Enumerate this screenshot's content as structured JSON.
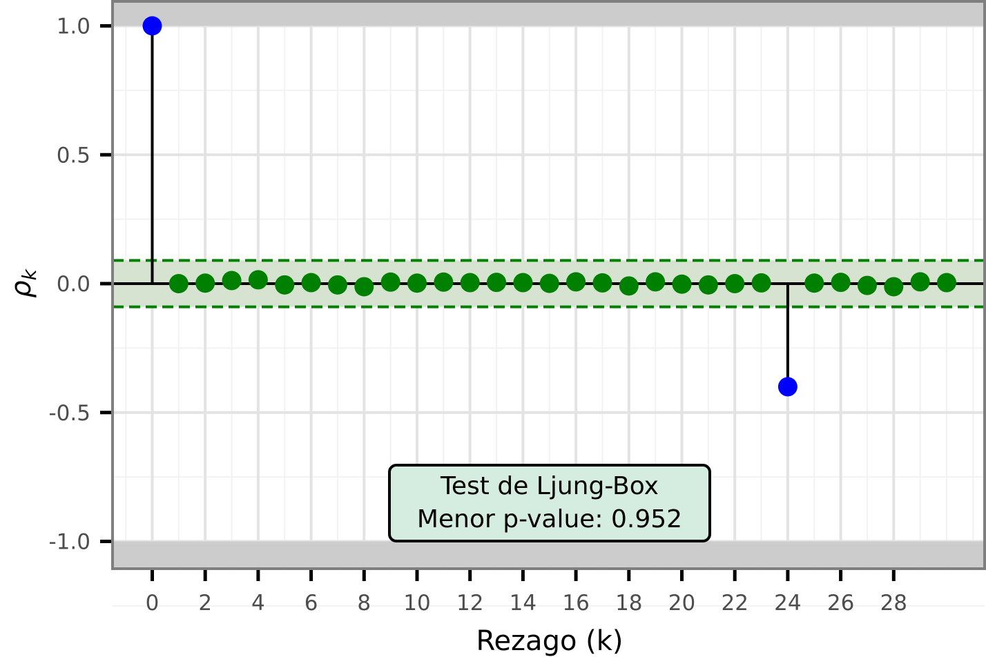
{
  "chart_data": {
    "type": "scatter",
    "subtype": "autocorrelation-stem",
    "xlabel": "Rezago (k)",
    "ylabel": "ρk",
    "ylabel_main": "ρ",
    "ylabel_sub": "k",
    "xlim": [
      -1.5,
      31.5
    ],
    "ylim": [
      -1.1,
      1.1
    ],
    "x_ticks": [
      0,
      2,
      4,
      6,
      8,
      10,
      12,
      14,
      16,
      18,
      20,
      22,
      24,
      26,
      28
    ],
    "x_tick_labels": [
      "0",
      "2",
      "4",
      "6",
      "8",
      "10",
      "12",
      "14",
      "16",
      "18",
      "20",
      "22",
      "24",
      "26",
      "28"
    ],
    "y_ticks": [
      -1.0,
      -0.5,
      0.0,
      0.5,
      1.0
    ],
    "y_tick_labels": [
      "-1.0",
      "-0.5",
      "0.0",
      "0.5",
      "1.0"
    ],
    "confidence_band": [
      -0.09,
      0.09
    ],
    "shaded_regions": [
      [
        1.0,
        1.1
      ],
      [
        -1.1,
        -1.0
      ]
    ],
    "grid": true,
    "lags": [
      0,
      1,
      2,
      3,
      4,
      5,
      6,
      7,
      8,
      9,
      10,
      11,
      12,
      13,
      14,
      15,
      16,
      17,
      18,
      19,
      20,
      21,
      22,
      23,
      24,
      25,
      26,
      27,
      28,
      29,
      30
    ],
    "values": [
      1.0,
      0.0,
      0.002,
      0.012,
      0.015,
      -0.005,
      0.004,
      -0.005,
      -0.012,
      0.006,
      0.002,
      0.006,
      0.004,
      0.005,
      0.004,
      0.001,
      0.007,
      0.003,
      -0.009,
      0.007,
      -0.002,
      -0.005,
      0.0,
      0.003,
      -0.4,
      0.002,
      0.005,
      -0.007,
      -0.012,
      0.007,
      0.004
    ],
    "colors": {
      "significant": "#0000ff",
      "non_significant": "#008000",
      "band_line": "#008000",
      "band_fill": "#d5e3d0",
      "stem": "#000000",
      "shade": "#cccccc"
    },
    "annotation": {
      "line1": "Test de Ljung-Box",
      "line2": "Menor p-value: 0.952",
      "fill": "#d4ede0"
    }
  }
}
